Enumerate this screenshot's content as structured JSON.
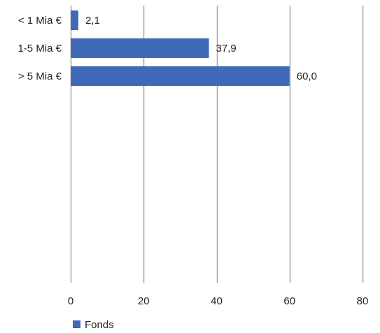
{
  "chart_data": {
    "type": "bar",
    "orientation": "horizontal",
    "categories": [
      "< 1 Mia €",
      "1-5 Mia €",
      "> 5 Mia €"
    ],
    "series": [
      {
        "name": "Fonds",
        "values": [
          2.1,
          37.9,
          60.0
        ],
        "value_labels": [
          "2,1",
          "37,9",
          "60,0"
        ],
        "color": "#4069B7"
      }
    ],
    "xlim": [
      0,
      80
    ],
    "xticks": [
      0,
      20,
      40,
      60,
      80
    ],
    "xtick_labels": [
      "0",
      "20",
      "40",
      "60",
      "80"
    ],
    "grid": "vertical",
    "grid_color": "#A6A6A6",
    "legend": "bottom-left"
  }
}
